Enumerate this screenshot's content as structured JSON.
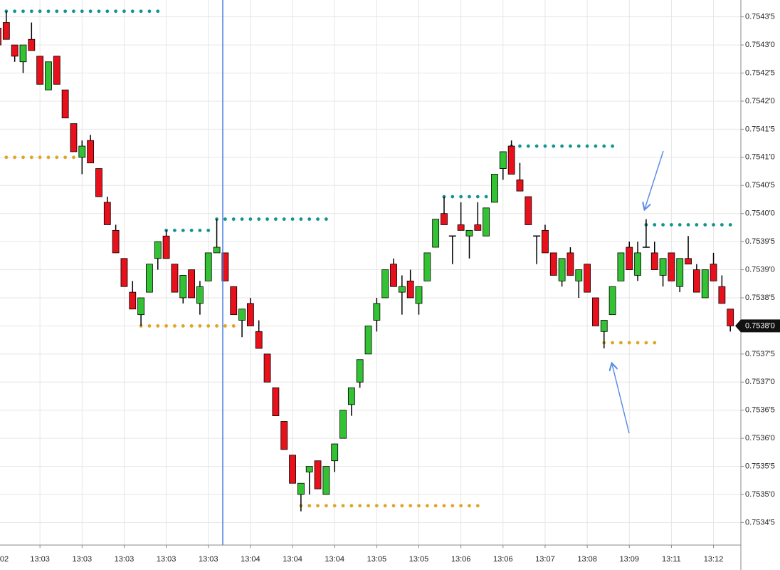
{
  "chart_data": {
    "type": "candlestick",
    "categories": [
      "02",
      null,
      null,
      null,
      null,
      "13:03",
      null,
      null,
      null,
      null,
      "13:03",
      null,
      null,
      null,
      null,
      "13:03",
      null,
      null,
      null,
      null,
      "13:03",
      null,
      null,
      null,
      null,
      "13:03",
      null,
      null,
      null,
      null,
      "13:04",
      null,
      null,
      null,
      null,
      "13:04",
      null,
      null,
      null,
      null,
      "13:04",
      null,
      null,
      null,
      null,
      "13:05",
      null,
      null,
      null,
      null,
      "13:05",
      null,
      null,
      null,
      null,
      "13:06",
      null,
      null,
      null,
      null,
      "13:06",
      null,
      null,
      null,
      null,
      "13:07",
      null,
      null,
      null,
      null,
      "13:08",
      null,
      null,
      null,
      null,
      "13:09",
      null,
      null,
      null,
      null,
      "13:11",
      null,
      null,
      null,
      null,
      "13:12",
      null,
      null
    ],
    "open": [
      0.75433,
      0.75434,
      0.7543,
      0.75427,
      0.75431,
      0.75428,
      0.75422,
      0.75428,
      0.75422,
      0.75416,
      0.7541,
      0.75413,
      0.75408,
      0.75402,
      0.75397,
      0.75392,
      0.75386,
      0.75382,
      0.75386,
      0.75392,
      0.75396,
      0.75391,
      0.75385,
      0.7539,
      0.75384,
      0.75388,
      0.75393,
      0.75393,
      0.75387,
      0.75381,
      0.75384,
      0.75379,
      0.75375,
      0.75369,
      0.75363,
      0.75357,
      0.7535,
      0.75354,
      0.75356,
      0.7535,
      0.75356,
      0.7536,
      0.75366,
      0.7537,
      0.75375,
      0.75381,
      0.75385,
      0.75391,
      0.75386,
      0.75388,
      0.75384,
      0.75388,
      0.75394,
      0.754,
      0.75396,
      0.75398,
      0.75396,
      0.75398,
      0.75396,
      0.75402,
      0.75408,
      0.75412,
      0.75406,
      0.75403,
      0.75396,
      0.75397,
      0.75393,
      0.75388,
      0.75393,
      0.75388,
      0.75391,
      0.75385,
      0.75379,
      0.75382,
      0.75388,
      0.75394,
      0.75389,
      0.75394,
      0.75393,
      0.75389,
      0.75393,
      0.75387,
      0.75392,
      0.7539,
      0.75385,
      0.75391,
      0.75387,
      0.75383
    ],
    "high": [
      0.75433,
      0.75436,
      0.7543,
      0.7543,
      0.75434,
      0.75428,
      0.75427,
      0.75428,
      0.75422,
      0.75416,
      0.75413,
      0.75414,
      0.75408,
      0.75403,
      0.75398,
      0.75392,
      0.75388,
      0.75385,
      0.75391,
      0.75395,
      0.75397,
      0.75391,
      0.75389,
      0.7539,
      0.75388,
      0.75393,
      0.75399,
      0.75393,
      0.75387,
      0.75383,
      0.75385,
      0.75381,
      0.75375,
      0.75369,
      0.75363,
      0.75357,
      0.75352,
      0.75355,
      0.75356,
      0.75355,
      0.75359,
      0.75365,
      0.75369,
      0.75374,
      0.7538,
      0.75385,
      0.7539,
      0.75392,
      0.75389,
      0.7539,
      0.75387,
      0.75393,
      0.75399,
      0.75403,
      0.75396,
      0.75402,
      0.75397,
      0.75402,
      0.75401,
      0.75407,
      0.75411,
      0.75413,
      0.75409,
      0.75403,
      0.75396,
      0.75398,
      0.75393,
      0.75392,
      0.75394,
      0.7539,
      0.75391,
      0.75385,
      0.75381,
      0.75387,
      0.75393,
      0.75395,
      0.75395,
      0.75399,
      0.75395,
      0.75392,
      0.75393,
      0.75392,
      0.75396,
      0.75391,
      0.7539,
      0.75393,
      0.75389,
      0.75383
    ],
    "low": [
      0.7543,
      0.75431,
      0.75427,
      0.75425,
      0.75429,
      0.75423,
      0.75422,
      0.75423,
      0.75417,
      0.75411,
      0.75407,
      0.75409,
      0.75403,
      0.75398,
      0.75393,
      0.75387,
      0.75383,
      0.7538,
      0.75386,
      0.7539,
      0.75392,
      0.75386,
      0.75384,
      0.75385,
      0.75382,
      0.75388,
      0.75393,
      0.75388,
      0.75382,
      0.75378,
      0.7538,
      0.75376,
      0.7537,
      0.75364,
      0.75358,
      0.75352,
      0.75347,
      0.7535,
      0.75351,
      0.7535,
      0.75354,
      0.7536,
      0.75364,
      0.75369,
      0.75375,
      0.75379,
      0.75385,
      0.75387,
      0.75382,
      0.75385,
      0.75382,
      0.75388,
      0.75394,
      0.75398,
      0.75391,
      0.75397,
      0.75392,
      0.75397,
      0.75396,
      0.75402,
      0.75406,
      0.75407,
      0.75404,
      0.75398,
      0.75391,
      0.75393,
      0.75389,
      0.75387,
      0.75389,
      0.75385,
      0.75386,
      0.7538,
      0.75376,
      0.75382,
      0.75388,
      0.7539,
      0.75388,
      0.75394,
      0.7539,
      0.75387,
      0.75388,
      0.75386,
      0.75391,
      0.75386,
      0.75385,
      0.75388,
      0.75384,
      0.75379
    ],
    "close": [
      0.7543,
      0.75431,
      0.75428,
      0.7543,
      0.75429,
      0.75423,
      0.75427,
      0.75423,
      0.75417,
      0.75411,
      0.75412,
      0.75409,
      0.75403,
      0.75398,
      0.75393,
      0.75387,
      0.75383,
      0.75385,
      0.75391,
      0.75395,
      0.75392,
      0.75386,
      0.75389,
      0.75385,
      0.75387,
      0.75393,
      0.75394,
      0.75388,
      0.75382,
      0.75383,
      0.7538,
      0.75376,
      0.7537,
      0.75364,
      0.75358,
      0.75352,
      0.75352,
      0.75355,
      0.75351,
      0.75355,
      0.75359,
      0.75365,
      0.75369,
      0.75374,
      0.7538,
      0.75384,
      0.7539,
      0.75387,
      0.75387,
      0.75385,
      0.75387,
      0.75393,
      0.75399,
      0.75398,
      0.75396,
      0.75397,
      0.75397,
      0.75397,
      0.75401,
      0.75407,
      0.75411,
      0.75407,
      0.75404,
      0.75398,
      0.75396,
      0.75393,
      0.75389,
      0.75392,
      0.75389,
      0.7539,
      0.75386,
      0.7538,
      0.75381,
      0.75387,
      0.75393,
      0.7539,
      0.75393,
      0.75394,
      0.7539,
      0.75392,
      0.75388,
      0.75392,
      0.75391,
      0.75386,
      0.7539,
      0.75388,
      0.75384,
      0.7538
    ],
    "up_color": "#33c233",
    "down_color": "#e8101a",
    "ylim": [
      0.75341,
      0.75438
    ],
    "yticks": [
      {
        "value": 0.75345,
        "label": "0.7534'5"
      },
      {
        "value": 0.7535,
        "label": "0.7535'0"
      },
      {
        "value": 0.75355,
        "label": "0.7535'5"
      },
      {
        "value": 0.7536,
        "label": "0.7536'0"
      },
      {
        "value": 0.75365,
        "label": "0.7536'5"
      },
      {
        "value": 0.7537,
        "label": "0.7537'0"
      },
      {
        "value": 0.75375,
        "label": "0.7537'5"
      },
      {
        "value": 0.7538,
        "label": "0.7538'0"
      },
      {
        "value": 0.75385,
        "label": "0.7538'5"
      },
      {
        "value": 0.7539,
        "label": "0.7539'0"
      },
      {
        "value": 0.75395,
        "label": "0.7539'5"
      },
      {
        "value": 0.754,
        "label": "0.7540'0"
      },
      {
        "value": 0.75405,
        "label": "0.7540'5"
      },
      {
        "value": 0.7541,
        "label": "0.7541'0"
      },
      {
        "value": 0.75415,
        "label": "0.7541'5"
      },
      {
        "value": 0.7542,
        "label": "0.7542'0"
      },
      {
        "value": 0.75425,
        "label": "0.7542'5"
      },
      {
        "value": 0.7543,
        "label": "0.7543'0"
      },
      {
        "value": 0.75435,
        "label": "0.7543'5"
      }
    ],
    "grid": true,
    "last_price": {
      "value": 0.7538,
      "label": "0.7538'0"
    },
    "levels": [
      {
        "price": 0.75436,
        "from": 1,
        "to": 19,
        "color": "#12958f"
      },
      {
        "price": 0.7541,
        "from": 0,
        "to": 9,
        "color": "#e0a526"
      },
      {
        "price": 0.75397,
        "from": 20,
        "to": 25,
        "color": "#12958f"
      },
      {
        "price": 0.75399,
        "from": 26,
        "to": 39,
        "color": "#12958f"
      },
      {
        "price": 0.7538,
        "from": 17,
        "to": 28,
        "color": "#e0a526"
      },
      {
        "price": 0.75348,
        "from": 36,
        "to": 57,
        "color": "#e0a526"
      },
      {
        "price": 0.75403,
        "from": 53,
        "to": 58,
        "color": "#12958f"
      },
      {
        "price": 0.75412,
        "from": 61,
        "to": 73,
        "color": "#12958f"
      },
      {
        "price": 0.75398,
        "from": 77,
        "to": 87,
        "color": "#12958f"
      },
      {
        "price": 0.75377,
        "from": 72,
        "to": 78,
        "color": "#e0a526"
      }
    ]
  }
}
